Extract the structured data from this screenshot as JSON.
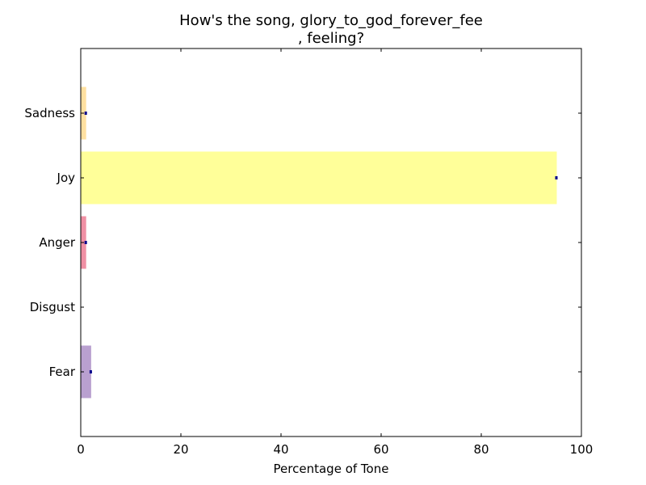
{
  "chart_data": {
    "type": "bar",
    "orientation": "horizontal",
    "title_lines": [
      "How's the song, glory_to_god_forever_fee",
      ", feeling?"
    ],
    "xlabel": "Percentage of Tone",
    "ylabel": "",
    "xlim": [
      0,
      100
    ],
    "xticks": [
      0,
      20,
      40,
      60,
      80,
      100
    ],
    "categories": [
      "Fear",
      "Disgust",
      "Anger",
      "Joy",
      "Sadness"
    ],
    "values": [
      2,
      0,
      1,
      95,
      1
    ],
    "colors": [
      "#b9a0d0",
      "#ffffff",
      "#f090a4",
      "#ffff99",
      "#ffe0a0"
    ],
    "error_marker_color": "#00008b",
    "grid": false,
    "legend": "none"
  }
}
